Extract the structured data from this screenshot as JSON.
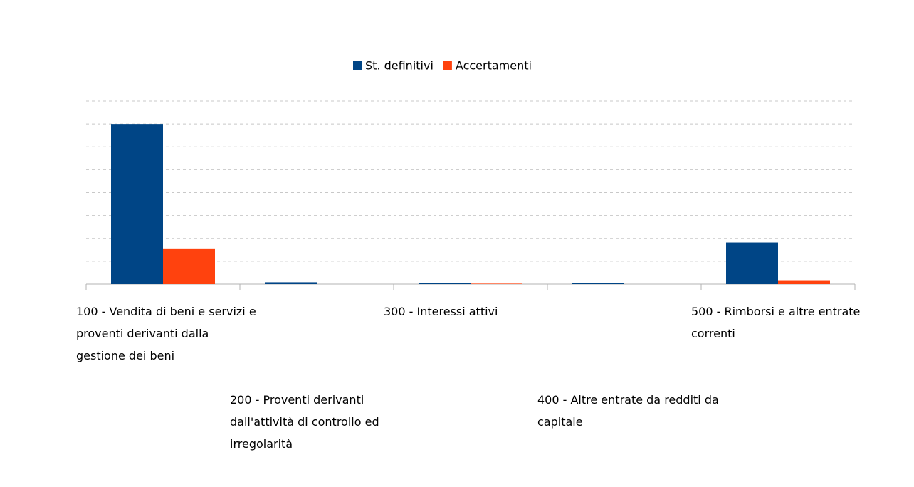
{
  "chart_data": {
    "type": "bar",
    "categories": [
      "100 - Vendita di beni e servizi e proventi derivanti dalla gestione dei beni",
      "200 - Proventi derivanti dall'attività di controllo ed irregolarità",
      "300 - Interessi attivi",
      "400 - Altre entrate da redditi da capitale",
      "500 - Rimborsi e altre entrate correnti"
    ],
    "series": [
      {
        "name": "St. definitivi",
        "color": "#004586",
        "values": [
          7.0,
          0.08,
          0.04,
          0.04,
          1.82
        ]
      },
      {
        "name": "Accertamenti",
        "color": "#ff420e",
        "values": [
          1.53,
          0,
          0.02,
          0,
          0.17
        ]
      }
    ],
    "ylim": [
      0,
      8
    ],
    "yticks": [
      0,
      1,
      2,
      3,
      4,
      5,
      6,
      7,
      8
    ],
    "grid": true,
    "legend": "top"
  }
}
